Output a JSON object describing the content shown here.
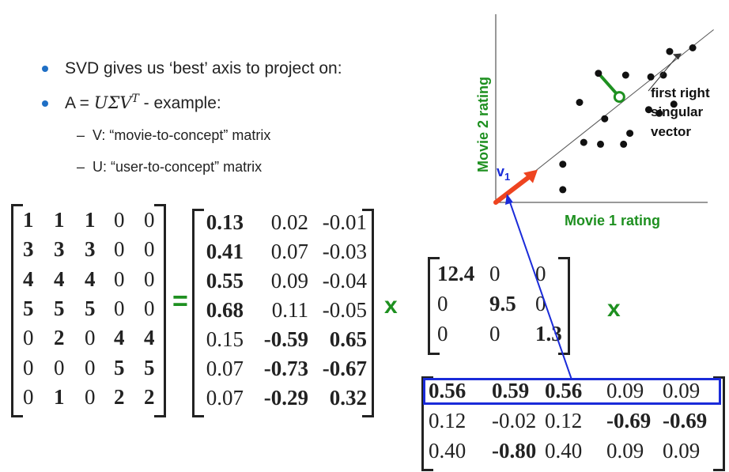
{
  "bullets": [
    {
      "text": "SVD gives us ‘best’ axis to project on:"
    },
    {
      "prefix": "A = ",
      "math": "UΣV",
      "sup": "T",
      "suffix": " - example:"
    }
  ],
  "sub_bullets": [
    {
      "dash": "–",
      "text": "V: “movie-to-concept” matrix"
    },
    {
      "dash": "–",
      "text": "U: “user-to-concept” matrix"
    }
  ],
  "operators": {
    "equals": "=",
    "times1": "x",
    "times2": "x"
  },
  "matrix_A": [
    [
      {
        "v": "1",
        "b": true
      },
      {
        "v": "1",
        "b": true
      },
      {
        "v": "1",
        "b": true
      },
      {
        "v": "0",
        "b": false
      },
      {
        "v": "0",
        "b": false
      }
    ],
    [
      {
        "v": "3",
        "b": true
      },
      {
        "v": "3",
        "b": true
      },
      {
        "v": "3",
        "b": true
      },
      {
        "v": "0",
        "b": false
      },
      {
        "v": "0",
        "b": false
      }
    ],
    [
      {
        "v": "4",
        "b": true
      },
      {
        "v": "4",
        "b": true
      },
      {
        "v": "4",
        "b": true
      },
      {
        "v": "0",
        "b": false
      },
      {
        "v": "0",
        "b": false
      }
    ],
    [
      {
        "v": "5",
        "b": true
      },
      {
        "v": "5",
        "b": true
      },
      {
        "v": "5",
        "b": true
      },
      {
        "v": "0",
        "b": false
      },
      {
        "v": "0",
        "b": false
      }
    ],
    [
      {
        "v": "0",
        "b": false
      },
      {
        "v": "2",
        "b": true
      },
      {
        "v": "0",
        "b": false
      },
      {
        "v": "4",
        "b": true
      },
      {
        "v": "4",
        "b": true
      }
    ],
    [
      {
        "v": "0",
        "b": false
      },
      {
        "v": "0",
        "b": false
      },
      {
        "v": "0",
        "b": false
      },
      {
        "v": "5",
        "b": true
      },
      {
        "v": "5",
        "b": true
      }
    ],
    [
      {
        "v": "0",
        "b": false
      },
      {
        "v": "1",
        "b": true
      },
      {
        "v": "0",
        "b": false
      },
      {
        "v": "2",
        "b": true
      },
      {
        "v": "2",
        "b": true
      }
    ]
  ],
  "matrix_U": [
    [
      {
        "v": "0.13",
        "b": true
      },
      {
        "v": "0.02",
        "b": false
      },
      {
        "v": "-0.01",
        "b": false
      }
    ],
    [
      {
        "v": "0.41",
        "b": true
      },
      {
        "v": "0.07",
        "b": false
      },
      {
        "v": "-0.03",
        "b": false
      }
    ],
    [
      {
        "v": "0.55",
        "b": true
      },
      {
        "v": "0.09",
        "b": false
      },
      {
        "v": "-0.04",
        "b": false
      }
    ],
    [
      {
        "v": "0.68",
        "b": true
      },
      {
        "v": "0.11",
        "b": false
      },
      {
        "v": "-0.05",
        "b": false
      }
    ],
    [
      {
        "v": "0.15",
        "b": false
      },
      {
        "v": "-0.59",
        "b": true
      },
      {
        "v": "0.65",
        "b": true
      }
    ],
    [
      {
        "v": "0.07",
        "b": false
      },
      {
        "v": "-0.73",
        "b": true
      },
      {
        "v": "-0.67",
        "b": true
      }
    ],
    [
      {
        "v": "0.07",
        "b": false
      },
      {
        "v": "-0.29",
        "b": true
      },
      {
        "v": "0.32",
        "b": true
      }
    ]
  ],
  "matrix_S": [
    [
      {
        "v": "12.4",
        "b": true
      },
      {
        "v": "0",
        "b": false
      },
      {
        "v": "0",
        "b": false
      }
    ],
    [
      {
        "v": "0",
        "b": false
      },
      {
        "v": "9.5",
        "b": true
      },
      {
        "v": "0",
        "b": false
      }
    ],
    [
      {
        "v": "0",
        "b": false
      },
      {
        "v": "0",
        "b": false
      },
      {
        "v": "1.3",
        "b": true
      }
    ]
  ],
  "matrix_VT": [
    [
      {
        "v": "0.56",
        "b": true
      },
      {
        "v": "0.59",
        "b": true
      },
      {
        "v": "0.56",
        "b": true
      },
      {
        "v": "0.09",
        "b": false
      },
      {
        "v": "0.09",
        "b": false
      }
    ],
    [
      {
        "v": "0.12",
        "b": false
      },
      {
        "v": "-0.02",
        "b": false
      },
      {
        "v": "0.12",
        "b": false
      },
      {
        "v": "-0.69",
        "b": true
      },
      {
        "v": "-0.69",
        "b": true
      }
    ],
    [
      {
        "v": "0.40",
        "b": false
      },
      {
        "v": "-0.80",
        "b": true
      },
      {
        "v": "0.40",
        "b": false
      },
      {
        "v": "0.09",
        "b": false
      },
      {
        "v": "0.09",
        "b": false
      }
    ]
  ],
  "chart_data": {
    "type": "scatter",
    "title": "",
    "xlabel": "Movie 1 rating",
    "ylabel": "Movie 2 rating",
    "xlim": [
      0,
      10
    ],
    "ylim": [
      0,
      10
    ],
    "points": [
      [
        9.4,
        8.5
      ],
      [
        8.3,
        8.3
      ],
      [
        6.2,
        7.0
      ],
      [
        7.4,
        6.9
      ],
      [
        8.0,
        7.0
      ],
      [
        4.0,
        5.5
      ],
      [
        5.2,
        4.6
      ],
      [
        7.3,
        5.1
      ],
      [
        7.8,
        4.9
      ],
      [
        8.5,
        5.4
      ],
      [
        6.4,
        3.8
      ],
      [
        4.2,
        3.3
      ],
      [
        5.0,
        3.2
      ],
      [
        6.1,
        3.2
      ],
      [
        3.2,
        2.1
      ],
      [
        3.2,
        0.7
      ]
    ],
    "highlight_point": [
      5.9,
      5.8
    ],
    "projection_from": [
      4.9,
      7.1
    ],
    "axis_line": {
      "from": [
        0,
        0
      ],
      "to": [
        10.4,
        9.5
      ]
    },
    "vector": {
      "label": "v",
      "subscript": "1",
      "from": [
        0,
        0
      ],
      "to": [
        2.0,
        1.8
      ],
      "color": "#ee4420"
    },
    "annotation": {
      "lines": [
        "first right",
        "singular",
        "vector"
      ]
    },
    "colors": {
      "axis_label": "#1e9020",
      "points": "#111111",
      "highlight": "#1e9020",
      "vector_label": "#1a2bd9"
    }
  },
  "highlight_color": "#1a2bd9",
  "operator_color": "#1e9020"
}
